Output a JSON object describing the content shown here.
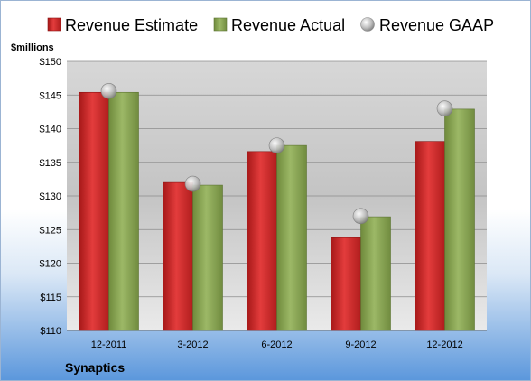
{
  "chart_data": {
    "type": "bar",
    "company": "Synaptics",
    "ylabel": "$millions",
    "ylim": [
      110,
      150
    ],
    "y_ticks": [
      "$110",
      "$115",
      "$120",
      "$125",
      "$130",
      "$135",
      "$140",
      "$145",
      "$150"
    ],
    "y_tick_values": [
      110,
      115,
      120,
      125,
      130,
      135,
      140,
      145,
      150
    ],
    "grid": true,
    "legend_position": "top",
    "categories": [
      "12-2011",
      "3-2012",
      "6-2012",
      "9-2012",
      "12-2012"
    ],
    "series": [
      {
        "name": "Revenue Estimate",
        "kind": "bar",
        "color": "#d42a2a",
        "values": [
          145.4,
          132.0,
          136.6,
          123.8,
          138.1
        ]
      },
      {
        "name": "Revenue Actual",
        "kind": "bar",
        "color": "#8aa653",
        "values": [
          145.4,
          131.6,
          137.5,
          126.9,
          142.9
        ]
      },
      {
        "name": "Revenue GAAP",
        "kind": "marker",
        "color": "#b8b8b8",
        "values": [
          145.6,
          131.8,
          137.5,
          127.0,
          143.0
        ]
      }
    ]
  }
}
